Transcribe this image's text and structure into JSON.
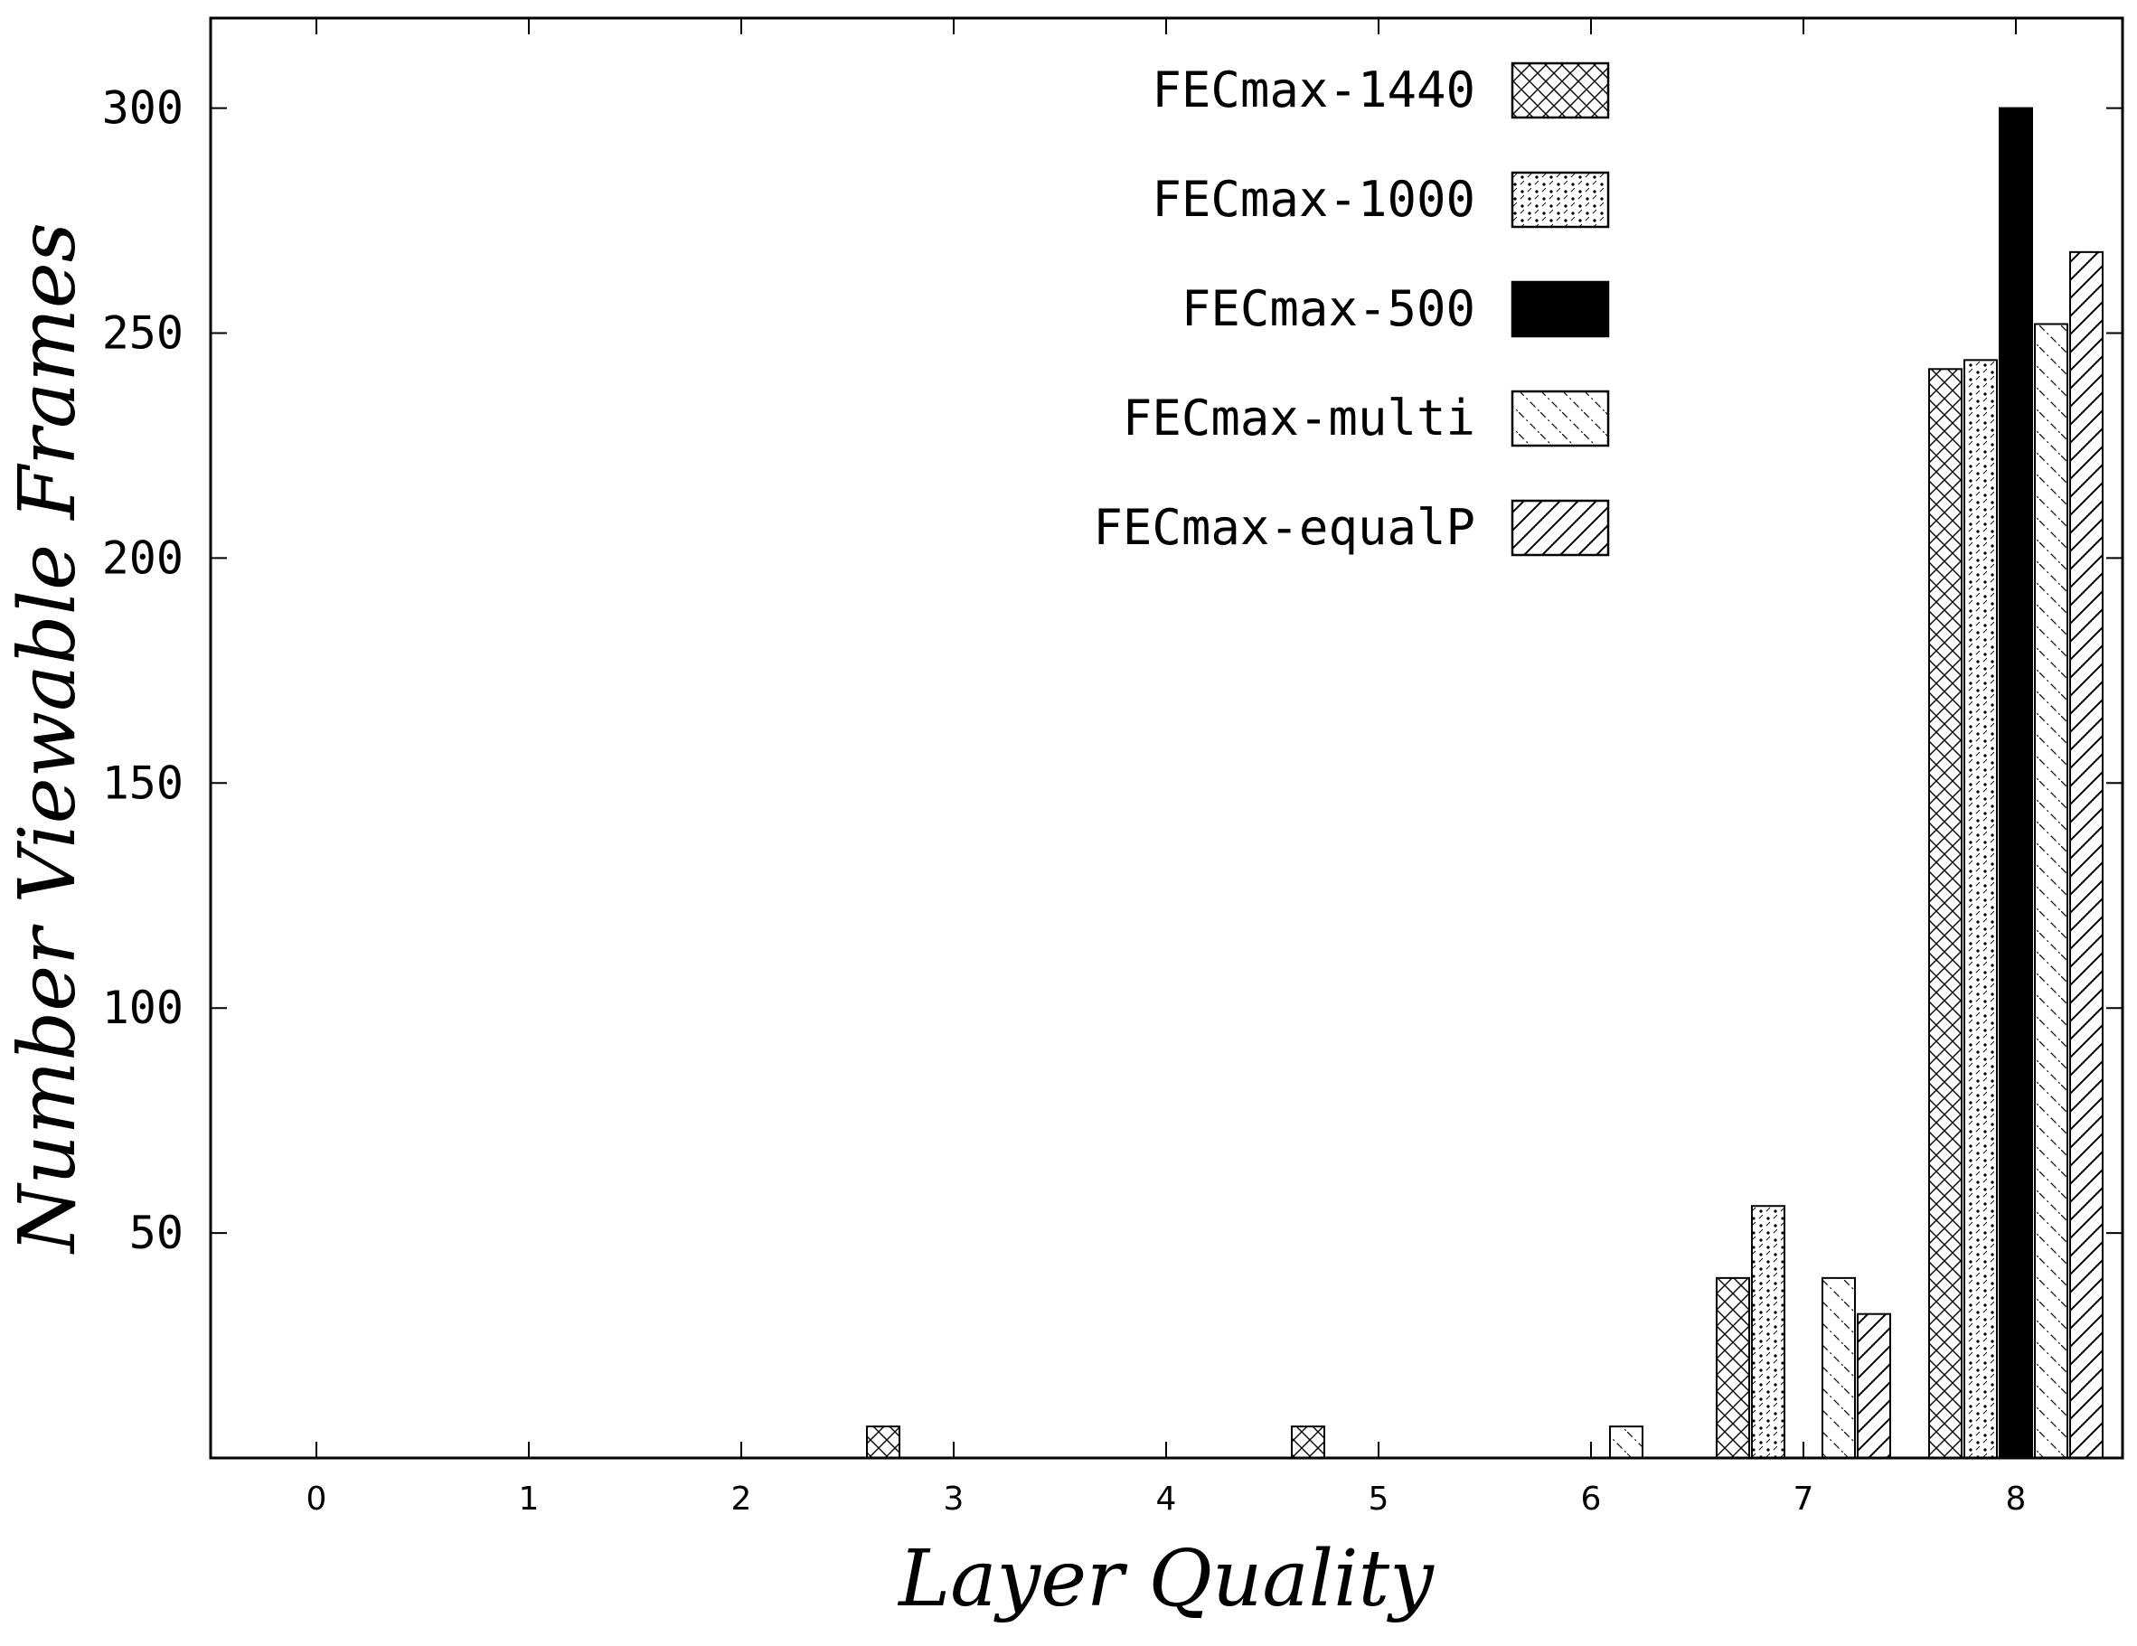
{
  "chart_data": {
    "type": "bar",
    "title": "",
    "xlabel": "Layer Quality",
    "ylabel": "Number Viewable Frames",
    "categories": [
      "0",
      "1",
      "2",
      "3",
      "4",
      "5",
      "6",
      "7",
      "8"
    ],
    "ylim": [
      0,
      320
    ],
    "yticks": [
      50,
      100,
      150,
      200,
      250,
      300
    ],
    "legend_position": "top-right",
    "series": [
      {
        "name": "FECmax-1440",
        "pattern": "crosshatch",
        "values": [
          0,
          0,
          0,
          7,
          0,
          7,
          0,
          40,
          242
        ]
      },
      {
        "name": "FECmax-1000",
        "pattern": "dots",
        "values": [
          0,
          0,
          0,
          0,
          0,
          0,
          0,
          56,
          244
        ]
      },
      {
        "name": "FECmax-500",
        "pattern": "solid",
        "values": [
          0,
          0,
          0,
          0,
          0,
          0,
          0,
          0,
          300
        ]
      },
      {
        "name": "FECmax-multi",
        "pattern": "dash-diagonal",
        "values": [
          0,
          0,
          0,
          0,
          0,
          0,
          7,
          40,
          252
        ]
      },
      {
        "name": "FECmax-equalP",
        "pattern": "diagonal",
        "values": [
          0,
          0,
          0,
          0,
          0,
          0,
          0,
          32,
          268
        ]
      }
    ],
    "colors": {
      "bar_stroke": "#000000",
      "solid_fill": "#000000",
      "background": "#ffffff"
    }
  }
}
